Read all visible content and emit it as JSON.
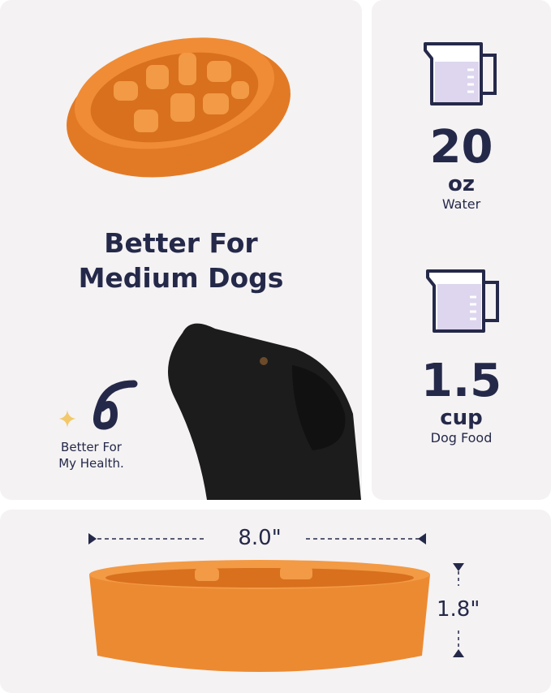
{
  "left_panel": {
    "headline_1": "Better For",
    "headline_2": "Medium Dogs",
    "badge_1": "Better For",
    "badge_2": "My Health."
  },
  "water": {
    "value": "20",
    "unit": "oz",
    "label": "Water",
    "icon": "measuring-cup-icon"
  },
  "food": {
    "value": "1.5",
    "unit": "cup",
    "label": "Dog Food",
    "icon": "measuring-cup-icon"
  },
  "dimensions": {
    "width": "8.0\"",
    "height": "1.8\""
  },
  "colors": {
    "navy": "#252949",
    "orange": "#e8832c",
    "lavender": "#ddd6ee",
    "panel": "#f4f2f3",
    "sparkle": "#f2c86a"
  }
}
